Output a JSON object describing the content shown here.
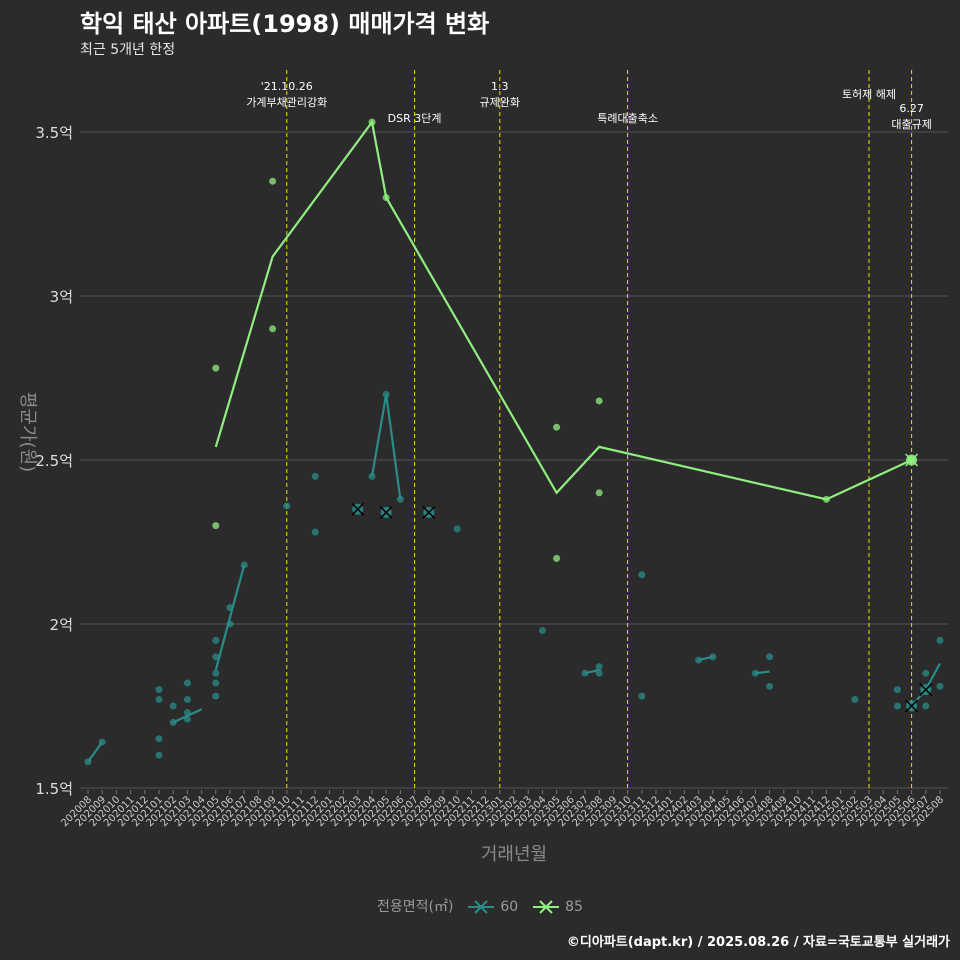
{
  "title": "학익 태산 아파트(1998) 매매가격 변화",
  "subtitle": "최근 5개년 한정",
  "footer": "©디아파트(dapt.kr) / 2025.08.26 / 자료=국토교통부 실거래가",
  "legend": {
    "title": "전용면적(㎡)",
    "items": [
      "60",
      "85"
    ]
  },
  "colors": {
    "background": "#2b2b2b",
    "grid": "#555555",
    "s60": "#2a8c88",
    "s85": "#90ee80",
    "event_line": "#e5e500"
  },
  "chart_data": {
    "type": "line",
    "xlabel": "거래년월",
    "ylabel": "평균가(원)",
    "ylim": [
      1.5,
      3.5
    ],
    "yticks": [
      {
        "v": 1.5,
        "label": "1.5억"
      },
      {
        "v": 2.0,
        "label": "2억"
      },
      {
        "v": 2.5,
        "label": "2.5억"
      },
      {
        "v": 3.0,
        "label": "3억"
      },
      {
        "v": 3.5,
        "label": "3.5억"
      }
    ],
    "x": [
      "202008",
      "202009",
      "202010",
      "202011",
      "202012",
      "202101",
      "202102",
      "202103",
      "202104",
      "202105",
      "202106",
      "202107",
      "202108",
      "202109",
      "202110",
      "202111",
      "202112",
      "202201",
      "202202",
      "202203",
      "202204",
      "202205",
      "202206",
      "202207",
      "202208",
      "202209",
      "202210",
      "202211",
      "202212",
      "202301",
      "202302",
      "202303",
      "202304",
      "202305",
      "202306",
      "202307",
      "202308",
      "202309",
      "202310",
      "202311",
      "202312",
      "202401",
      "202402",
      "202403",
      "202404",
      "202405",
      "202406",
      "202407",
      "202408",
      "202409",
      "202410",
      "202411",
      "202412",
      "202501",
      "202502",
      "202503",
      "202504",
      "202505",
      "202506",
      "202507",
      "202508"
    ],
    "events": [
      {
        "x": "202110",
        "label": "'21.10.26\n가계부채관리강화",
        "row": 0
      },
      {
        "x": "202207",
        "label": "DSR 3단계",
        "row": 1
      },
      {
        "x": "202301",
        "label": "1.3\n규제완화",
        "row": 0
      },
      {
        "x": "202310",
        "label": "특례대출축소",
        "row": 1
      },
      {
        "x": "202503",
        "label": "토허제 해제",
        "row": 2
      },
      {
        "x": "202506",
        "label": "6.27\n대출규제",
        "row": 3
      }
    ],
    "series": [
      {
        "name": "60",
        "color": "#2a8c88",
        "line": [
          [
            [
              "202008",
              1.58
            ],
            [
              "202009",
              1.64
            ]
          ],
          [
            [
              "202102",
              1.7
            ],
            [
              "202104",
              1.74
            ]
          ],
          [
            [
              "202105",
              1.86
            ],
            [
              "202106",
              2.02
            ],
            [
              "202107",
              2.18
            ]
          ],
          [
            [
              "202204",
              2.45
            ],
            [
              "202205",
              2.7
            ],
            [
              "202206",
              2.38
            ]
          ],
          [
            [
              "202307",
              1.85
            ],
            [
              "202308",
              1.86
            ]
          ],
          [
            [
              "202403",
              1.89
            ],
            [
              "202404",
              1.9
            ]
          ],
          [
            [
              "202407",
              1.85
            ],
            [
              "202408",
              1.855
            ]
          ],
          [
            [
              "202506",
              1.75
            ],
            [
              "202507",
              1.8
            ],
            [
              "202508",
              1.88
            ]
          ]
        ],
        "points": [
          [
            "202008",
            1.58
          ],
          [
            "202009",
            1.64
          ],
          [
            "202101",
            1.8
          ],
          [
            "202101",
            1.77
          ],
          [
            "202101",
            1.65
          ],
          [
            "202101",
            1.6
          ],
          [
            "202102",
            1.75
          ],
          [
            "202102",
            1.7
          ],
          [
            "202103",
            1.82
          ],
          [
            "202103",
            1.77
          ],
          [
            "202103",
            1.73
          ],
          [
            "202103",
            1.71
          ],
          [
            "202105",
            1.95
          ],
          [
            "202105",
            1.9
          ],
          [
            "202105",
            1.85
          ],
          [
            "202105",
            1.82
          ],
          [
            "202105",
            1.78
          ],
          [
            "202106",
            2.05
          ],
          [
            "202106",
            2.0
          ],
          [
            "202107",
            2.18
          ],
          [
            "202110",
            2.36
          ],
          [
            "202112",
            2.45
          ],
          [
            "202112",
            2.28
          ],
          [
            "202204",
            2.45
          ],
          [
            "202205",
            2.7
          ],
          [
            "202206",
            2.38
          ],
          [
            "202210",
            2.29
          ],
          [
            "202304",
            1.98
          ],
          [
            "202307",
            1.85
          ],
          [
            "202308",
            1.87
          ],
          [
            "202308",
            1.85
          ],
          [
            "202311",
            2.15
          ],
          [
            "202311",
            1.78
          ],
          [
            "202403",
            1.89
          ],
          [
            "202404",
            1.9
          ],
          [
            "202407",
            1.85
          ],
          [
            "202408",
            1.9
          ],
          [
            "202408",
            1.81
          ],
          [
            "202502",
            1.77
          ],
          [
            "202505",
            1.8
          ],
          [
            "202505",
            1.75
          ],
          [
            "202507",
            1.85
          ],
          [
            "202507",
            1.8
          ],
          [
            "202507",
            1.75
          ],
          [
            "202508",
            1.95
          ],
          [
            "202508",
            1.81
          ]
        ],
        "markers": [
          [
            "202203",
            2.35
          ],
          [
            "202205",
            2.34
          ],
          [
            "202208",
            2.34
          ],
          [
            "202506",
            1.75
          ],
          [
            "202507",
            1.8
          ]
        ]
      },
      {
        "name": "85",
        "color": "#90ee80",
        "line": [
          [
            [
              "202105",
              2.54
            ],
            [
              "202109",
              3.12
            ],
            [
              "202204",
              3.53
            ],
            [
              "202205",
              3.3
            ],
            [
              "202305",
              2.4
            ],
            [
              "202308",
              2.54
            ],
            [
              "202412",
              2.38
            ],
            [
              "202506",
              2.5
            ]
          ]
        ],
        "points": [
          [
            "202105",
            2.78
          ],
          [
            "202105",
            2.3
          ],
          [
            "202109",
            3.35
          ],
          [
            "202109",
            2.9
          ],
          [
            "202204",
            3.53
          ],
          [
            "202205",
            3.3
          ],
          [
            "202305",
            2.6
          ],
          [
            "202305",
            2.2
          ],
          [
            "202308",
            2.68
          ],
          [
            "202308",
            2.4
          ],
          [
            "202412",
            2.38
          ],
          [
            "202506",
            2.5
          ]
        ],
        "markers": [
          [
            "202506",
            2.5
          ]
        ]
      }
    ]
  }
}
